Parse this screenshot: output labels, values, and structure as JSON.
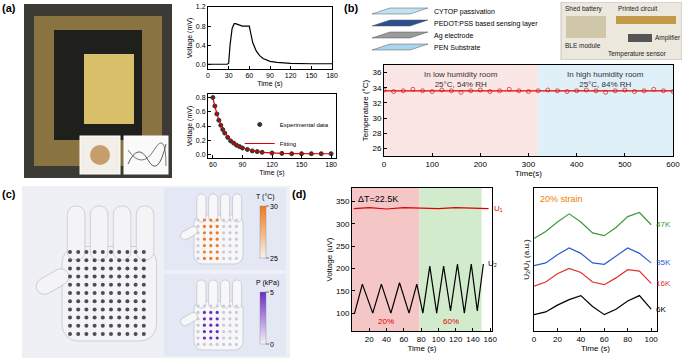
{
  "panel_labels": [
    "(a)",
    "(b)",
    "(c)",
    "(d)"
  ],
  "chart_data": [
    {
      "type": "line",
      "x_label": "Time (s)",
      "y_label": "Voltage (mV)",
      "x": [
        0,
        10,
        20,
        28,
        30,
        32,
        35,
        38,
        40,
        45,
        50,
        55,
        60,
        62,
        65,
        70,
        75,
        80,
        90,
        100,
        120,
        150,
        180
      ],
      "series": [
        {
          "color": "#000000",
          "values": [
            0,
            0,
            0,
            0,
            0.02,
            0.4,
            0.75,
            0.85,
            0.85,
            0.82,
            0.8,
            0.8,
            0.8,
            0.65,
            0.45,
            0.28,
            0.18,
            0.12,
            0.06,
            0.04,
            0.02,
            0.01,
            0.01
          ]
        }
      ],
      "xlim": [
        0,
        180
      ],
      "xticks": [
        0,
        30,
        60,
        90,
        120,
        150,
        180
      ],
      "ylim": [
        -0.1,
        1.2
      ],
      "yticks": [
        {
          "value": 0,
          "label": "0.0"
        },
        0.4,
        0.8,
        1.2
      ],
      "grid": false
    },
    {
      "type": "scatter",
      "x_label": "Time (s)",
      "y_label": "Voltage (mV)",
      "x": [
        60,
        62,
        64,
        66,
        68,
        70,
        72,
        75,
        78,
        81,
        84,
        87,
        90,
        95,
        100,
        105,
        110,
        120,
        130,
        140,
        150,
        160,
        170,
        180
      ],
      "series": [
        {
          "name": "Experimental data",
          "type": "scatter",
          "marker": "circle",
          "color": "#333333",
          "values": [
            0.8,
            0.68,
            0.57,
            0.48,
            0.41,
            0.35,
            0.3,
            0.24,
            0.19,
            0.16,
            0.13,
            0.11,
            0.09,
            0.07,
            0.05,
            0.04,
            0.03,
            0.02,
            0.015,
            0.01,
            0.01,
            0.01,
            0.01,
            0.01
          ]
        },
        {
          "name": "Fitting",
          "type": "line",
          "color": "#e00000",
          "values": [
            0.79,
            0.67,
            0.57,
            0.49,
            0.42,
            0.36,
            0.31,
            0.25,
            0.2,
            0.16,
            0.13,
            0.11,
            0.09,
            0.07,
            0.05,
            0.04,
            0.03,
            0.02,
            0.015,
            0.012,
            0.01,
            0.01,
            0.01,
            0.01
          ]
        }
      ],
      "xlim": [
        55,
        185
      ],
      "xticks": [
        60,
        90,
        120,
        150,
        180
      ],
      "ylim": [
        -0.05,
        0.85
      ],
      "yticks": [
        {
          "value": 0,
          "label": "0.0"
        },
        0.2,
        0.4,
        0.6,
        0.8
      ],
      "grid": false,
      "legend": "right"
    },
    {
      "type": "scatter",
      "x_label": "Time(s)",
      "y_label": "Temperature (°C)",
      "x": [
        0,
        20,
        40,
        60,
        80,
        100,
        120,
        140,
        160,
        180,
        200,
        220,
        240,
        260,
        280,
        300,
        320,
        340,
        360,
        380,
        400,
        420,
        440,
        460,
        480,
        500,
        520,
        540,
        560,
        580,
        600
      ],
      "series": [
        {
          "type": "scatter",
          "marker": "circle-open",
          "color": "#e05050",
          "values": [
            33.7,
            33.5,
            33.6,
            33.8,
            33.6,
            33.5,
            33.7,
            33.6,
            33.4,
            33.6,
            33.7,
            33.5,
            33.6,
            33.8,
            33.6,
            33.5,
            33.6,
            33.7,
            33.6,
            33.5,
            33.6,
            33.7,
            33.6,
            33.4,
            33.6,
            33.7,
            33.5,
            33.6,
            33.8,
            33.6,
            33.5
          ]
        },
        {
          "type": "line",
          "color": "#e00000",
          "values": [
            33.6,
            33.6,
            33.6,
            33.6,
            33.6,
            33.6,
            33.6,
            33.6,
            33.6,
            33.6,
            33.6,
            33.6,
            33.6,
            33.6,
            33.6,
            33.6,
            33.6,
            33.6,
            33.6,
            33.6,
            33.6,
            33.6,
            33.6,
            33.6,
            33.6,
            33.6,
            33.6,
            33.6,
            33.6,
            33.6,
            33.6
          ]
        }
      ],
      "regions": [
        {
          "start": 0,
          "end": 320,
          "color": "#fbe6e6",
          "text": [
            "In low humidity room",
            "25°C, 54% RH"
          ]
        },
        {
          "start": 320,
          "end": 600,
          "color": "#dff0f8",
          "text": [
            "In high humidity room",
            "25°C, 84% RH"
          ]
        }
      ],
      "xlim": [
        0,
        600
      ],
      "xticks": [
        0,
        100,
        200,
        300,
        400,
        500,
        600
      ],
      "ylim": [
        25,
        37
      ],
      "yticks": [
        26,
        28,
        30,
        32,
        34,
        36
      ],
      "grid": false
    },
    {
      "type": "line",
      "x_label": "Time (s)",
      "y_label": "Voltage (uV)",
      "annotation": "ΔT=22.5K",
      "series": [
        {
          "name": "U₁",
          "color": "#e00000",
          "x": [
            2,
            20,
            40,
            60,
            80,
            100,
            120,
            140,
            158
          ],
          "values": [
            334,
            336,
            333,
            336,
            335,
            334,
            336,
            335,
            334
          ]
        },
        {
          "name": "U₂",
          "color": "#000000",
          "x": [
            3,
            12,
            24,
            34,
            45,
            55,
            66,
            75,
            82,
            90,
            98,
            106,
            114,
            122,
            130,
            138,
            145,
            152
          ],
          "values": [
            100,
            165,
            100,
            165,
            100,
            168,
            100,
            165,
            100,
            205,
            100,
            205,
            105,
            210,
            100,
            210,
            105,
            210
          ]
        }
      ],
      "regions": [
        {
          "start": 0,
          "end": 78,
          "color": "#f5c6c6",
          "text": [
            "20%"
          ]
        },
        {
          "start": 78,
          "end": 150,
          "color": "#d3ebcd",
          "text": [
            "60%"
          ]
        }
      ],
      "xlim": [
        0,
        162
      ],
      "xticks": [
        20,
        40,
        60,
        80,
        100,
        120,
        140,
        160
      ],
      "ylim": [
        60,
        380
      ],
      "yticks": [
        100,
        150,
        200,
        250,
        300,
        350
      ],
      "grid": false
    },
    {
      "type": "line",
      "x_label": "Time (s)",
      "y_label": "U₂/U₁ (a.u.)",
      "annotation": "20% strain",
      "x": [
        0,
        10,
        20,
        30,
        40,
        50,
        60,
        70,
        80,
        90,
        100
      ],
      "series": [
        {
          "name": "47K",
          "color": "#3a9a3a",
          "values": [
            6.8,
            7.3,
            8.0,
            8.6,
            8.0,
            7.2,
            7.0,
            7.6,
            8.4,
            8.7,
            7.8
          ]
        },
        {
          "name": "35K",
          "color": "#2a5bd7",
          "values": [
            4.8,
            5.0,
            5.6,
            6.1,
            5.7,
            5.0,
            4.9,
            5.5,
            6.1,
            5.7,
            5.0
          ]
        },
        {
          "name": "16K",
          "color": "#e03030",
          "values": [
            3.3,
            3.6,
            4.2,
            4.6,
            4.3,
            3.6,
            3.4,
            3.9,
            4.5,
            4.4,
            3.5
          ]
        },
        {
          "name": "6K",
          "color": "#000000",
          "values": [
            1.2,
            1.4,
            1.9,
            2.3,
            2.6,
            1.8,
            1.2,
            1.6,
            2.2,
            2.6,
            1.6
          ]
        }
      ],
      "xlim": [
        0,
        105
      ],
      "xticks": [
        0,
        20,
        40,
        60,
        80,
        100
      ],
      "ylim": [
        0,
        10.5
      ],
      "yticks": [],
      "tick_labels": "x",
      "grid": false
    }
  ],
  "device_b": {
    "layers": [
      "CYTOP passivation",
      "PEDOT:PSS based sensing layer",
      "Ag electrode",
      "PEN Substrate"
    ],
    "components": [
      "Shed battery",
      "Printed circuit",
      "Amplifier",
      "BLE module",
      "Temperature sensor"
    ]
  },
  "maps_c": {
    "temperature_scale": {
      "title": "T (°C)",
      "range": [
        25,
        30
      ],
      "ticks": [
        25,
        30
      ]
    },
    "pressure_scale": {
      "title": "P (kPa)",
      "range": [
        0,
        5
      ],
      "ticks": [
        0,
        5
      ]
    }
  }
}
